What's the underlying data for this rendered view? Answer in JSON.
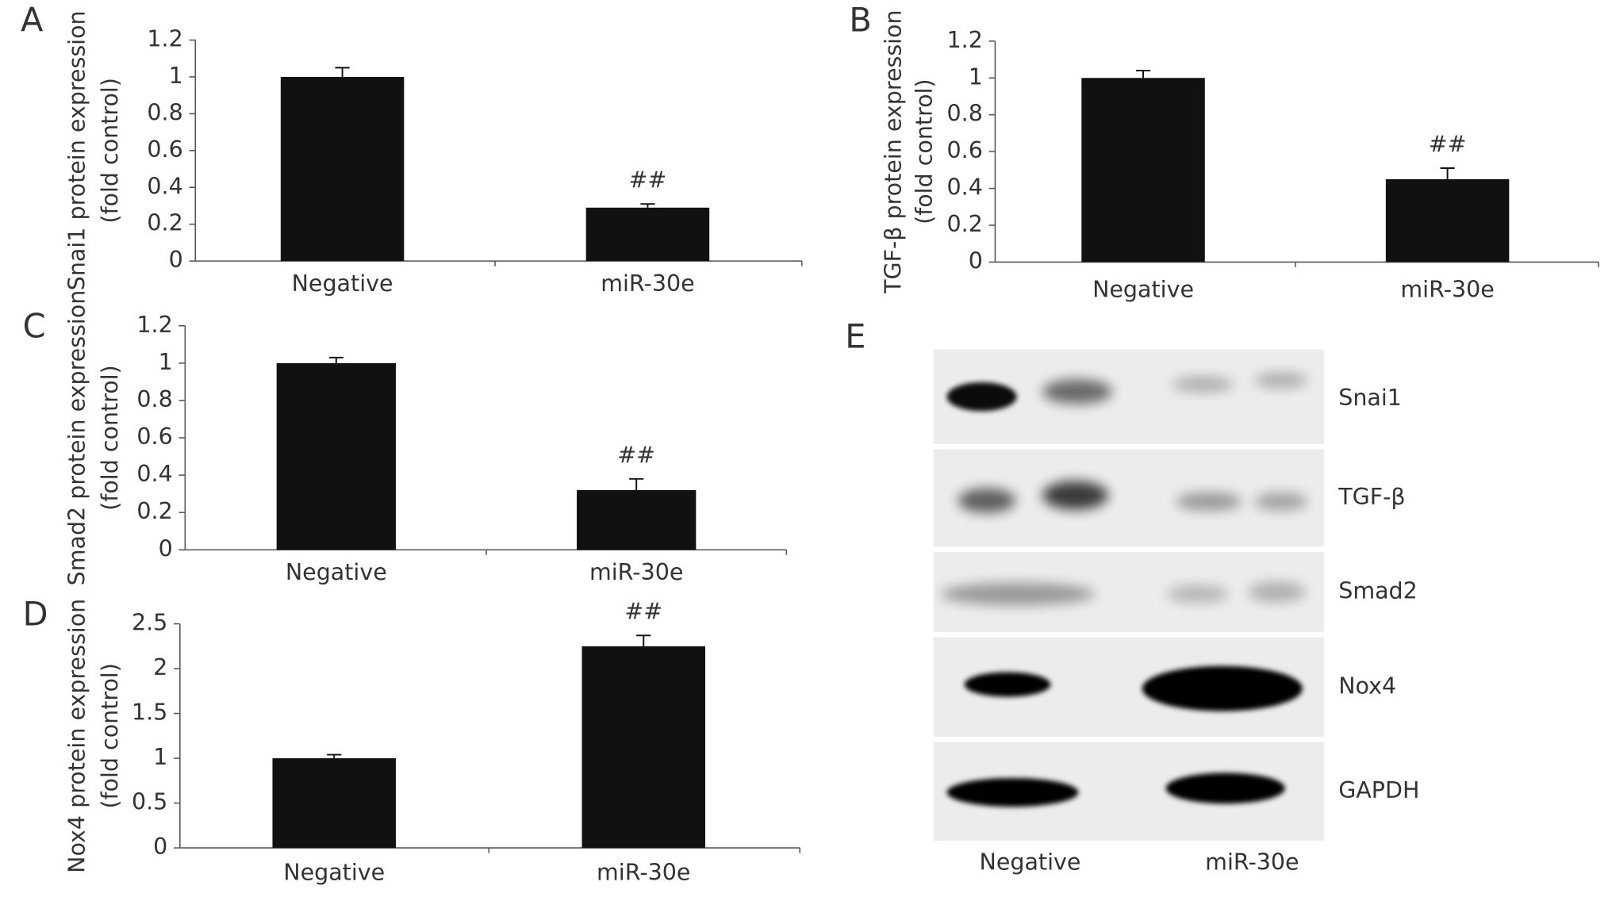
{
  "chart_data": [
    {
      "type": "bar",
      "panel": "A",
      "ylabel": [
        "Snai1 protein expression",
        "(fold control)"
      ],
      "categories": [
        "Negative",
        "miR-30e"
      ],
      "values": [
        1.0,
        0.29
      ],
      "errors": [
        0.05,
        0.02
      ],
      "markers": [
        null,
        "##"
      ],
      "color": "#111111",
      "ylim": [
        0,
        1.2
      ],
      "yticks": [
        0,
        0.2,
        0.4,
        0.6,
        0.8,
        1,
        1.2
      ],
      "grid": false
    },
    {
      "type": "bar",
      "panel": "B",
      "ylabel": [
        "TGF-β protein expression",
        "(fold control)"
      ],
      "categories": [
        "Negative",
        "miR-30e"
      ],
      "values": [
        1.0,
        0.45
      ],
      "errors": [
        0.04,
        0.06
      ],
      "markers": [
        null,
        "##"
      ],
      "color": "#111111",
      "ylim": [
        0,
        1.2
      ],
      "yticks": [
        0,
        0.2,
        0.4,
        0.6,
        0.8,
        1,
        1.2
      ],
      "grid": false
    },
    {
      "type": "bar",
      "panel": "C",
      "ylabel": [
        "Smad2 protein expression",
        "(fold control)"
      ],
      "categories": [
        "Negative",
        "miR-30e"
      ],
      "values": [
        1.0,
        0.32
      ],
      "errors": [
        0.03,
        0.06
      ],
      "markers": [
        null,
        "##"
      ],
      "color": "#111111",
      "ylim": [
        0,
        1.2
      ],
      "yticks": [
        0,
        0.2,
        0.4,
        0.6,
        0.8,
        1,
        1.2
      ],
      "grid": false
    },
    {
      "type": "bar",
      "panel": "D",
      "ylabel": [
        "Nox4 protein expression",
        "(fold control)"
      ],
      "categories": [
        "Negative",
        "miR-30e"
      ],
      "values": [
        1.0,
        2.25
      ],
      "errors": [
        0.04,
        0.12
      ],
      "markers": [
        null,
        "##"
      ],
      "color": "#111111",
      "ylim": [
        0,
        2.5
      ],
      "yticks": [
        0,
        0.5,
        1,
        1.5,
        2,
        2.5
      ],
      "grid": false
    }
  ],
  "blot": {
    "panel": "E",
    "rows": [
      "Snai1",
      "TGF-β",
      "Smad2",
      "Nox4",
      "GAPDH"
    ],
    "lanes": [
      "Negative",
      "miR-30e"
    ]
  }
}
